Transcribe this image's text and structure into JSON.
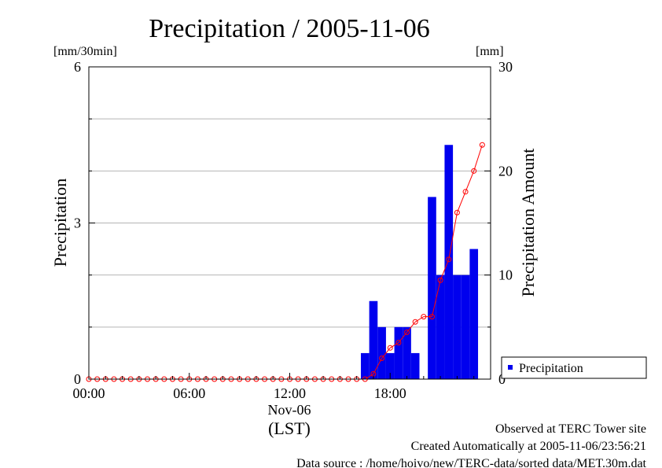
{
  "chart_data": {
    "type": "bar",
    "title": "Precipitation / 2005-11-06",
    "ylabel_left": "Precipitation",
    "yunit_left": "[mm/30min]",
    "ylabel_right": "Precipitation Amount",
    "yunit_right": "[mm]",
    "ylim_left": [
      0,
      6
    ],
    "ylim_right": [
      0,
      30
    ],
    "yticks_left": [
      "0",
      "3",
      "6"
    ],
    "yticks_right": [
      "0",
      "10",
      "20",
      "30"
    ],
    "xlim_hours": [
      0,
      24
    ],
    "xticks": [
      {
        "hour": 0,
        "label": "00:00"
      },
      {
        "hour": 6,
        "label": "06:00"
      },
      {
        "hour": 12,
        "label": "12:00"
      },
      {
        "hour": 18,
        "label": "18:00"
      }
    ],
    "xdate": "Nov-06",
    "xlabel": "(LST)",
    "grid": true,
    "legend_position": "bottom-right",
    "series": [
      {
        "name": "Precipitation",
        "kind": "bar",
        "axis": "left",
        "color": "#0000ee",
        "bars": [
          {
            "time": "16:30",
            "value": 0.5
          },
          {
            "time": "17:00",
            "value": 1.5
          },
          {
            "time": "17:30",
            "value": 1.0
          },
          {
            "time": "18:00",
            "value": 0.5
          },
          {
            "time": "18:30",
            "value": 1.0
          },
          {
            "time": "19:00",
            "value": 1.0
          },
          {
            "time": "19:30",
            "value": 0.5
          },
          {
            "time": "20:00",
            "value": 0.0
          },
          {
            "time": "20:30",
            "value": 3.5
          },
          {
            "time": "21:00",
            "value": 2.0
          },
          {
            "time": "21:30",
            "value": 4.5
          },
          {
            "time": "22:00",
            "value": 2.0
          },
          {
            "time": "22:30",
            "value": 2.0
          },
          {
            "time": "23:00",
            "value": 2.5
          }
        ]
      },
      {
        "kind": "line",
        "axis": "right",
        "color": "#ff0000",
        "points": [
          {
            "time": "00:00",
            "value": 0
          },
          {
            "time": "00:30",
            "value": 0
          },
          {
            "time": "01:00",
            "value": 0
          },
          {
            "time": "01:30",
            "value": 0
          },
          {
            "time": "02:00",
            "value": 0
          },
          {
            "time": "02:30",
            "value": 0
          },
          {
            "time": "03:00",
            "value": 0
          },
          {
            "time": "03:30",
            "value": 0
          },
          {
            "time": "04:00",
            "value": 0
          },
          {
            "time": "04:30",
            "value": 0
          },
          {
            "time": "05:00",
            "value": 0
          },
          {
            "time": "05:30",
            "value": 0
          },
          {
            "time": "06:00",
            "value": 0
          },
          {
            "time": "06:30",
            "value": 0
          },
          {
            "time": "07:00",
            "value": 0
          },
          {
            "time": "07:30",
            "value": 0
          },
          {
            "time": "08:00",
            "value": 0
          },
          {
            "time": "08:30",
            "value": 0
          },
          {
            "time": "09:00",
            "value": 0
          },
          {
            "time": "09:30",
            "value": 0
          },
          {
            "time": "10:00",
            "value": 0
          },
          {
            "time": "10:30",
            "value": 0
          },
          {
            "time": "11:00",
            "value": 0
          },
          {
            "time": "11:30",
            "value": 0
          },
          {
            "time": "12:00",
            "value": 0
          },
          {
            "time": "12:30",
            "value": 0
          },
          {
            "time": "13:00",
            "value": 0
          },
          {
            "time": "13:30",
            "value": 0
          },
          {
            "time": "14:00",
            "value": 0
          },
          {
            "time": "14:30",
            "value": 0
          },
          {
            "time": "15:00",
            "value": 0
          },
          {
            "time": "15:30",
            "value": 0
          },
          {
            "time": "16:00",
            "value": 0
          },
          {
            "time": "16:30",
            "value": 0
          },
          {
            "time": "17:00",
            "value": 0.5
          },
          {
            "time": "17:30",
            "value": 2.0
          },
          {
            "time": "18:00",
            "value": 3.0
          },
          {
            "time": "18:30",
            "value": 3.5
          },
          {
            "time": "19:00",
            "value": 4.5
          },
          {
            "time": "19:30",
            "value": 5.5
          },
          {
            "time": "20:00",
            "value": 6.0
          },
          {
            "time": "20:30",
            "value": 6.0
          },
          {
            "time": "21:00",
            "value": 9.5
          },
          {
            "time": "21:30",
            "value": 11.5
          },
          {
            "time": "22:00",
            "value": 16.0
          },
          {
            "time": "22:30",
            "value": 18.0
          },
          {
            "time": "23:00",
            "value": 20.0
          },
          {
            "time": "23:30",
            "value": 22.5
          }
        ]
      }
    ]
  },
  "footer": {
    "line1": "Observed at TERC Tower site",
    "line2": "Created Automatically at 2005-11-06/23:56:21",
    "line3": "Data source : /home/hoivo/new/TERC-data/sorted  data/MET.30m.dat"
  }
}
